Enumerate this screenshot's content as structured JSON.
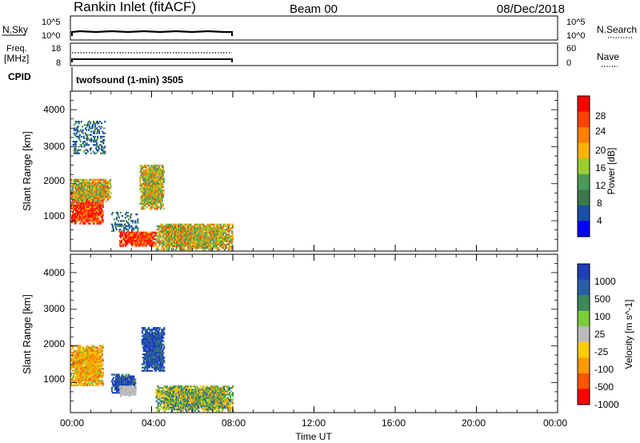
{
  "header": {
    "station": "Rankin Inlet (fitACF)",
    "beam": "Beam 00",
    "date": "08/Dec/2018"
  },
  "aux_panels": {
    "nsky": {
      "left_label": "N.Sky",
      "left_ticks": [
        "10^5",
        "10^0"
      ],
      "right_ticks": [
        "10^5",
        "10^0"
      ],
      "right_label": "N.Search"
    },
    "freq": {
      "left_label_1": "Freq.",
      "left_label_2": "[MHz]",
      "left_ticks": [
        "18",
        "8"
      ],
      "right_ticks": [
        "60",
        "0"
      ],
      "right_label": "Nave"
    },
    "cpid": {
      "label": "CPID",
      "program": "twofsound (1-min) 3505"
    }
  },
  "x_axis": {
    "label": "Time UT",
    "ticks": [
      "00:00",
      "04:00",
      "08:00",
      "12:00",
      "16:00",
      "20:00",
      "00:00"
    ]
  },
  "colors": {
    "power_scale": [
      "#0000ff",
      "#1a4fa8",
      "#3a7a4a",
      "#4a9a5a",
      "#9acd32",
      "#ffb300",
      "#ff7f00",
      "#ff4400",
      "#ff0000"
    ],
    "velocity_scale": [
      "#1f3fb8",
      "#2a5fa8",
      "#3a8a5a",
      "#7ccd3a",
      "#bbbbbb",
      "#ffcc00",
      "#ff9900",
      "#ff5500",
      "#ff0000"
    ]
  },
  "chart_data": [
    {
      "type": "heatmap",
      "panel": "power",
      "ylabel": "Slant Range [km]",
      "ylim": [
        180,
        4500
      ],
      "yticks": [
        "1000",
        "2000",
        "3000",
        "4000"
      ],
      "xlim_hours": [
        0,
        24
      ],
      "colorbar": {
        "label": "Power [dB]",
        "ticks": [
          "28",
          "24",
          "20",
          "16",
          "12",
          "8",
          "4"
        ]
      },
      "data_extent_hours": [
        0,
        8
      ],
      "regions": [
        {
          "t": [
            0.0,
            1.6
          ],
          "r": [
            900,
            1800
          ],
          "level": "high"
        },
        {
          "t": [
            0.0,
            2.0
          ],
          "r": [
            1500,
            2100
          ],
          "level": "medium"
        },
        {
          "t": [
            2.0,
            3.3
          ],
          "r": [
            700,
            1200
          ],
          "level": "low"
        },
        {
          "t": [
            2.4,
            4.2
          ],
          "r": [
            300,
            700
          ],
          "level": "high"
        },
        {
          "t": [
            3.4,
            4.6
          ],
          "r": [
            1300,
            2500
          ],
          "level": "medium"
        },
        {
          "t": [
            4.2,
            8.0
          ],
          "r": [
            200,
            900
          ],
          "level": "medium"
        },
        {
          "t": [
            0.1,
            1.7
          ],
          "r": [
            2800,
            3700
          ],
          "level": "low"
        }
      ]
    },
    {
      "type": "heatmap",
      "panel": "velocity",
      "ylabel": "Slant Range [km]",
      "ylim": [
        180,
        4500
      ],
      "yticks": [
        "1000",
        "2000",
        "3000",
        "4000"
      ],
      "xlim_hours": [
        0,
        24
      ],
      "colorbar": {
        "label": "Velocity [m s^-1]",
        "ticks": [
          "1000",
          "500",
          "100",
          "25",
          "-25",
          "-100",
          "-500",
          "-1000"
        ]
      },
      "data_extent_hours": [
        0,
        8
      ],
      "regions": [
        {
          "t": [
            0.0,
            1.6
          ],
          "r": [
            900,
            2000
          ],
          "level": "negative"
        },
        {
          "t": [
            2.0,
            3.2
          ],
          "r": [
            700,
            1200
          ],
          "level": "positive"
        },
        {
          "t": [
            3.5,
            4.6
          ],
          "r": [
            1300,
            2500
          ],
          "level": "positive"
        },
        {
          "t": [
            4.2,
            8.0
          ],
          "r": [
            200,
            900
          ],
          "level": "mixed"
        },
        {
          "t": [
            2.4,
            3.2
          ],
          "r": [
            600,
            900
          ],
          "level": "ground"
        }
      ]
    }
  ]
}
